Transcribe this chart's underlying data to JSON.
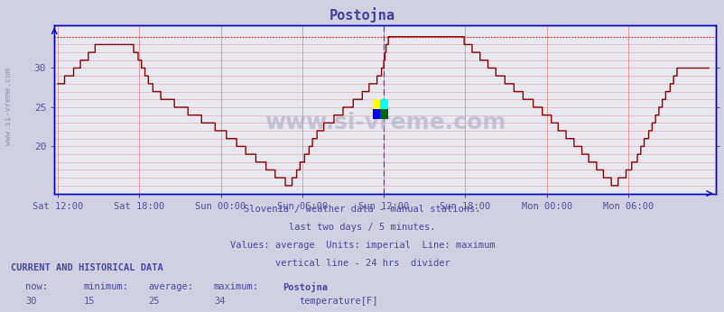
{
  "title": "Postojna",
  "title_color": "#4040a0",
  "background_color": "#d0d0e0",
  "plot_bg_color": "#e8e8f0",
  "grid_color": "#c8c8d8",
  "line_color": "#8b0000",
  "max_line_color": "#ff0000",
  "vline_color": "#cc00cc",
  "axis_color": "#0000cc",
  "text_color": "#4848a0",
  "tick_color": "#5050a0",
  "ylim": [
    14,
    35.5
  ],
  "yticks": [
    20,
    25,
    30
  ],
  "n_points": 576,
  "tick_labels": [
    "Sat 12:00",
    "Sat 18:00",
    "Sun 00:00",
    "Sun 06:00",
    "Sun 12:00",
    "Sun 18:00",
    "Mon 00:00",
    "Mon 06:00"
  ],
  "tick_positions": [
    0,
    72,
    144,
    216,
    288,
    360,
    432,
    504
  ],
  "vline_pos": 288,
  "max_value": 34,
  "footer_lines": [
    "Slovenia / weather data - manual stations.",
    "last two days / 5 minutes.",
    "Values: average  Units: imperial  Line: maximum",
    "vertical line - 24 hrs  divider"
  ],
  "current_label": "CURRENT AND HISTORICAL DATA",
  "stats_header": [
    "now:",
    "minimum:",
    "average:",
    "maximum:",
    "Postojna"
  ],
  "stats_values": [
    "30",
    "15",
    "25",
    "34"
  ],
  "legend_label": "temperature[F]",
  "legend_color": "#cc0000",
  "watermark_text": "www.si-vreme.com",
  "sidebar_text": "www.si-vreme.com"
}
